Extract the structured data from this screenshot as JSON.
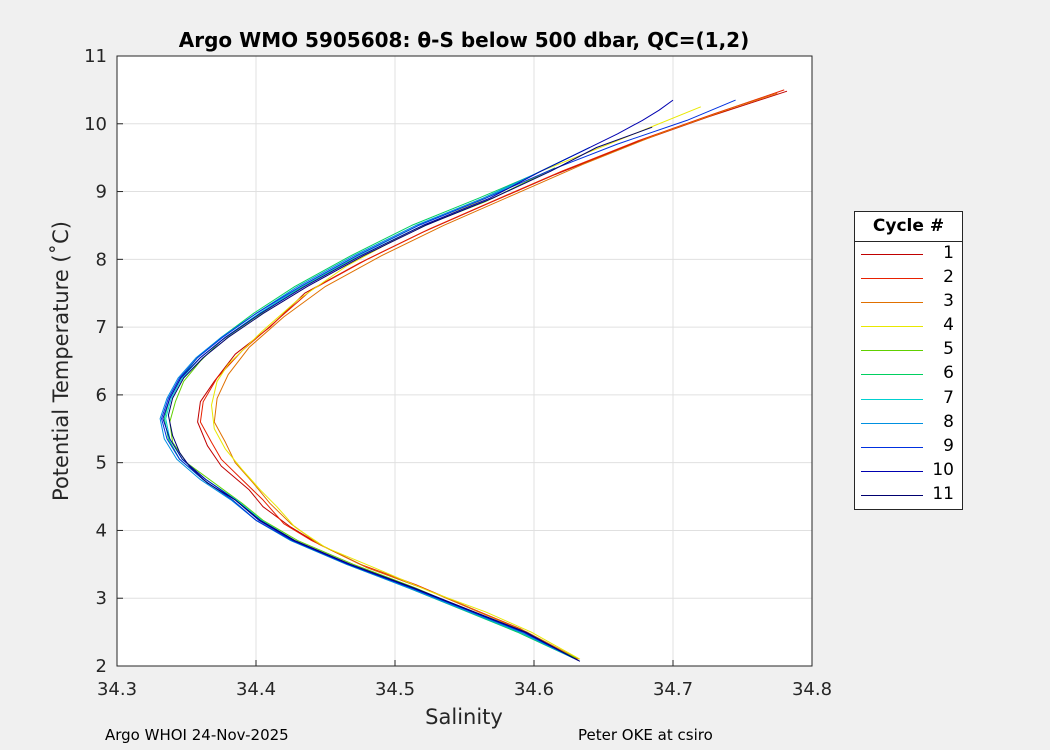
{
  "chart_data": {
    "type": "line",
    "title": "Argo WMO 5905608: θ-S below 500 dbar,  QC=(1,2)",
    "xlabel": "Salinity",
    "ylabel": "Potential Temperature (˚C)",
    "xlim": [
      34.3,
      34.8
    ],
    "ylim": [
      2,
      11
    ],
    "xticks": [
      "34.3",
      "34.4",
      "34.5",
      "34.6",
      "34.7",
      "34.8"
    ],
    "yticks": [
      "2",
      "3",
      "4",
      "5",
      "6",
      "7",
      "8",
      "9",
      "10",
      "11"
    ],
    "grid": true,
    "legend": {
      "title": "Cycle #",
      "position": "right",
      "entries": [
        "1",
        "2",
        "3",
        "4",
        "5",
        "6",
        "7",
        "8",
        "9",
        "10",
        "11"
      ]
    },
    "series": [
      {
        "name": "1",
        "color": "#c00000",
        "points": [
          [
            34.631,
            2.1
          ],
          [
            34.59,
            2.55
          ],
          [
            34.56,
            2.8
          ],
          [
            34.52,
            3.15
          ],
          [
            34.48,
            3.45
          ],
          [
            34.445,
            3.8
          ],
          [
            34.425,
            4.05
          ],
          [
            34.405,
            4.35
          ],
          [
            34.395,
            4.6
          ],
          [
            34.375,
            4.95
          ],
          [
            34.365,
            5.25
          ],
          [
            34.358,
            5.6
          ],
          [
            34.36,
            5.9
          ],
          [
            34.37,
            6.2
          ],
          [
            34.385,
            6.6
          ],
          [
            34.41,
            7.0
          ],
          [
            34.435,
            7.5
          ],
          [
            34.475,
            7.95
          ],
          [
            34.52,
            8.4
          ],
          [
            34.57,
            8.85
          ],
          [
            34.615,
            9.25
          ],
          [
            34.67,
            9.7
          ],
          [
            34.725,
            10.1
          ],
          [
            34.782,
            10.48
          ]
        ]
      },
      {
        "name": "2",
        "color": "#e82000",
        "points": [
          [
            34.63,
            2.1
          ],
          [
            34.59,
            2.55
          ],
          [
            34.555,
            2.85
          ],
          [
            34.515,
            3.2
          ],
          [
            34.475,
            3.5
          ],
          [
            34.44,
            3.85
          ],
          [
            34.42,
            4.1
          ],
          [
            34.405,
            4.45
          ],
          [
            34.39,
            4.75
          ],
          [
            34.375,
            5.05
          ],
          [
            34.368,
            5.3
          ],
          [
            34.36,
            5.6
          ],
          [
            34.362,
            5.9
          ],
          [
            34.372,
            6.25
          ],
          [
            34.39,
            6.65
          ],
          [
            34.415,
            7.1
          ],
          [
            34.44,
            7.55
          ],
          [
            34.48,
            8.0
          ],
          [
            34.525,
            8.45
          ],
          [
            34.575,
            8.9
          ],
          [
            34.62,
            9.3
          ],
          [
            34.675,
            9.75
          ],
          [
            34.73,
            10.15
          ],
          [
            34.78,
            10.5
          ]
        ]
      },
      {
        "name": "3",
        "color": "#e07000",
        "points": [
          [
            34.632,
            2.1
          ],
          [
            34.595,
            2.5
          ],
          [
            34.56,
            2.8
          ],
          [
            34.52,
            3.15
          ],
          [
            34.48,
            3.45
          ],
          [
            34.445,
            3.8
          ],
          [
            34.425,
            4.1
          ],
          [
            34.41,
            4.4
          ],
          [
            34.398,
            4.7
          ],
          [
            34.385,
            5.0
          ],
          [
            34.378,
            5.3
          ],
          [
            34.37,
            5.6
          ],
          [
            34.372,
            5.95
          ],
          [
            34.38,
            6.3
          ],
          [
            34.395,
            6.7
          ],
          [
            34.42,
            7.15
          ],
          [
            34.45,
            7.6
          ],
          [
            34.49,
            8.05
          ],
          [
            34.535,
            8.5
          ],
          [
            34.585,
            8.95
          ],
          [
            34.635,
            9.4
          ],
          [
            34.69,
            9.85
          ],
          [
            34.745,
            10.25
          ],
          [
            34.775,
            10.45
          ]
        ]
      },
      {
        "name": "4",
        "color": "#e8e800",
        "points": [
          [
            34.633,
            2.1
          ],
          [
            34.598,
            2.5
          ],
          [
            34.565,
            2.8
          ],
          [
            34.525,
            3.1
          ],
          [
            34.485,
            3.45
          ],
          [
            34.45,
            3.75
          ],
          [
            34.428,
            4.05
          ],
          [
            34.415,
            4.35
          ],
          [
            34.403,
            4.6
          ],
          [
            34.39,
            4.9
          ],
          [
            34.378,
            5.2
          ],
          [
            34.37,
            5.5
          ],
          [
            34.368,
            5.85
          ],
          [
            34.372,
            6.2
          ],
          [
            34.38,
            6.45
          ],
          [
            34.39,
            6.65
          ],
          [
            34.405,
            6.95
          ],
          [
            34.43,
            7.4
          ],
          [
            34.465,
            7.9
          ],
          [
            34.51,
            8.4
          ],
          [
            34.56,
            8.85
          ],
          [
            34.605,
            9.3
          ],
          [
            34.66,
            9.75
          ],
          [
            34.72,
            10.25
          ]
        ]
      },
      {
        "name": "5",
        "color": "#60d000",
        "points": [
          [
            34.63,
            2.12
          ],
          [
            34.59,
            2.5
          ],
          [
            34.555,
            2.8
          ],
          [
            34.515,
            3.15
          ],
          [
            34.47,
            3.5
          ],
          [
            34.43,
            3.85
          ],
          [
            34.405,
            4.15
          ],
          [
            34.39,
            4.4
          ],
          [
            34.37,
            4.7
          ],
          [
            34.35,
            5.0
          ],
          [
            34.34,
            5.3
          ],
          [
            34.338,
            5.6
          ],
          [
            34.342,
            5.9
          ],
          [
            34.348,
            6.2
          ],
          [
            34.36,
            6.5
          ],
          [
            34.375,
            6.8
          ],
          [
            34.4,
            7.15
          ],
          [
            34.43,
            7.55
          ],
          [
            34.47,
            8.0
          ],
          [
            34.515,
            8.45
          ],
          [
            34.565,
            8.85
          ],
          [
            34.6,
            9.2
          ],
          [
            34.615,
            9.35
          ]
        ]
      },
      {
        "name": "6",
        "color": "#00d060",
        "points": [
          [
            34.628,
            2.12
          ],
          [
            34.588,
            2.5
          ],
          [
            34.552,
            2.8
          ],
          [
            34.51,
            3.15
          ],
          [
            34.465,
            3.5
          ],
          [
            34.425,
            3.85
          ],
          [
            34.4,
            4.15
          ],
          [
            34.383,
            4.45
          ],
          [
            34.362,
            4.75
          ],
          [
            34.345,
            5.05
          ],
          [
            34.337,
            5.35
          ],
          [
            34.334,
            5.65
          ],
          [
            34.338,
            5.95
          ],
          [
            34.346,
            6.25
          ],
          [
            34.358,
            6.55
          ],
          [
            34.375,
            6.85
          ],
          [
            34.398,
            7.2
          ],
          [
            34.428,
            7.6
          ],
          [
            34.468,
            8.05
          ],
          [
            34.512,
            8.5
          ],
          [
            34.56,
            8.9
          ],
          [
            34.6,
            9.25
          ],
          [
            34.62,
            9.45
          ]
        ]
      },
      {
        "name": "7",
        "color": "#00d0d0",
        "points": [
          [
            34.628,
            2.12
          ],
          [
            34.59,
            2.5
          ],
          [
            34.553,
            2.8
          ],
          [
            34.512,
            3.15
          ],
          [
            34.466,
            3.5
          ],
          [
            34.428,
            3.85
          ],
          [
            34.404,
            4.15
          ],
          [
            34.386,
            4.45
          ],
          [
            34.364,
            4.75
          ],
          [
            34.347,
            5.05
          ],
          [
            34.338,
            5.35
          ],
          [
            34.335,
            5.65
          ],
          [
            34.339,
            5.95
          ],
          [
            34.347,
            6.25
          ],
          [
            34.36,
            6.55
          ],
          [
            34.378,
            6.85
          ],
          [
            34.402,
            7.2
          ],
          [
            34.433,
            7.6
          ],
          [
            34.473,
            8.05
          ],
          [
            34.517,
            8.5
          ],
          [
            34.565,
            8.9
          ],
          [
            34.605,
            9.3
          ],
          [
            34.625,
            9.5
          ]
        ]
      },
      {
        "name": "8",
        "color": "#0090e0",
        "points": [
          [
            34.63,
            2.1
          ],
          [
            34.59,
            2.5
          ],
          [
            34.553,
            2.8
          ],
          [
            34.51,
            3.15
          ],
          [
            34.465,
            3.5
          ],
          [
            34.425,
            3.85
          ],
          [
            34.4,
            4.15
          ],
          [
            34.382,
            4.45
          ],
          [
            34.36,
            4.75
          ],
          [
            34.343,
            5.05
          ],
          [
            34.334,
            5.35
          ],
          [
            34.331,
            5.65
          ],
          [
            34.336,
            5.95
          ],
          [
            34.344,
            6.25
          ],
          [
            34.357,
            6.55
          ],
          [
            34.375,
            6.85
          ],
          [
            34.4,
            7.2
          ],
          [
            34.43,
            7.6
          ],
          [
            34.47,
            8.05
          ],
          [
            34.515,
            8.5
          ],
          [
            34.563,
            8.9
          ],
          [
            34.605,
            9.3
          ],
          [
            34.64,
            9.65
          ]
        ]
      },
      {
        "name": "9",
        "color": "#0030e0",
        "points": [
          [
            34.632,
            2.08
          ],
          [
            34.592,
            2.5
          ],
          [
            34.555,
            2.8
          ],
          [
            34.512,
            3.15
          ],
          [
            34.466,
            3.5
          ],
          [
            34.426,
            3.85
          ],
          [
            34.4,
            4.15
          ],
          [
            34.383,
            4.45
          ],
          [
            34.362,
            4.75
          ],
          [
            34.345,
            5.05
          ],
          [
            34.336,
            5.35
          ],
          [
            34.332,
            5.65
          ],
          [
            34.337,
            5.95
          ],
          [
            34.345,
            6.25
          ],
          [
            34.358,
            6.55
          ],
          [
            34.376,
            6.85
          ],
          [
            34.4,
            7.2
          ],
          [
            34.432,
            7.6
          ],
          [
            34.472,
            8.05
          ],
          [
            34.517,
            8.5
          ],
          [
            34.565,
            8.9
          ],
          [
            34.61,
            9.3
          ],
          [
            34.66,
            9.7
          ],
          [
            34.71,
            10.05
          ],
          [
            34.745,
            10.35
          ]
        ]
      },
      {
        "name": "10",
        "color": "#0000b0",
        "points": [
          [
            34.632,
            2.08
          ],
          [
            34.593,
            2.5
          ],
          [
            34.556,
            2.8
          ],
          [
            34.513,
            3.15
          ],
          [
            34.467,
            3.5
          ],
          [
            34.427,
            3.85
          ],
          [
            34.402,
            4.15
          ],
          [
            34.385,
            4.45
          ],
          [
            34.364,
            4.75
          ],
          [
            34.347,
            5.05
          ],
          [
            34.338,
            5.35
          ],
          [
            34.333,
            5.65
          ],
          [
            34.338,
            5.95
          ],
          [
            34.346,
            6.25
          ],
          [
            34.36,
            6.55
          ],
          [
            34.378,
            6.85
          ],
          [
            34.403,
            7.2
          ],
          [
            34.435,
            7.6
          ],
          [
            34.475,
            8.05
          ],
          [
            34.52,
            8.5
          ],
          [
            34.568,
            8.9
          ],
          [
            34.605,
            9.3
          ],
          [
            34.635,
            9.6
          ],
          [
            34.66,
            9.85
          ],
          [
            34.678,
            10.05
          ],
          [
            34.69,
            10.2
          ],
          [
            34.7,
            10.35
          ]
        ]
      },
      {
        "name": "11",
        "color": "#000070",
        "points": [
          [
            34.633,
            2.07
          ],
          [
            34.594,
            2.5
          ],
          [
            34.557,
            2.8
          ],
          [
            34.514,
            3.15
          ],
          [
            34.468,
            3.5
          ],
          [
            34.428,
            3.85
          ],
          [
            34.403,
            4.15
          ],
          [
            34.385,
            4.45
          ],
          [
            34.365,
            4.7
          ],
          [
            34.352,
            4.95
          ],
          [
            34.345,
            5.15
          ],
          [
            34.34,
            5.4
          ],
          [
            34.337,
            5.7
          ],
          [
            34.34,
            5.95
          ],
          [
            34.348,
            6.25
          ],
          [
            34.362,
            6.55
          ],
          [
            34.38,
            6.85
          ],
          [
            34.405,
            7.2
          ],
          [
            34.437,
            7.6
          ],
          [
            34.477,
            8.05
          ],
          [
            34.522,
            8.5
          ],
          [
            34.57,
            8.9
          ],
          [
            34.612,
            9.3
          ],
          [
            34.645,
            9.65
          ],
          [
            34.685,
            9.95
          ]
        ]
      }
    ]
  },
  "footer": {
    "left": "Argo WHOI 24-Nov-2025",
    "right": "Peter OKE at csiro"
  }
}
